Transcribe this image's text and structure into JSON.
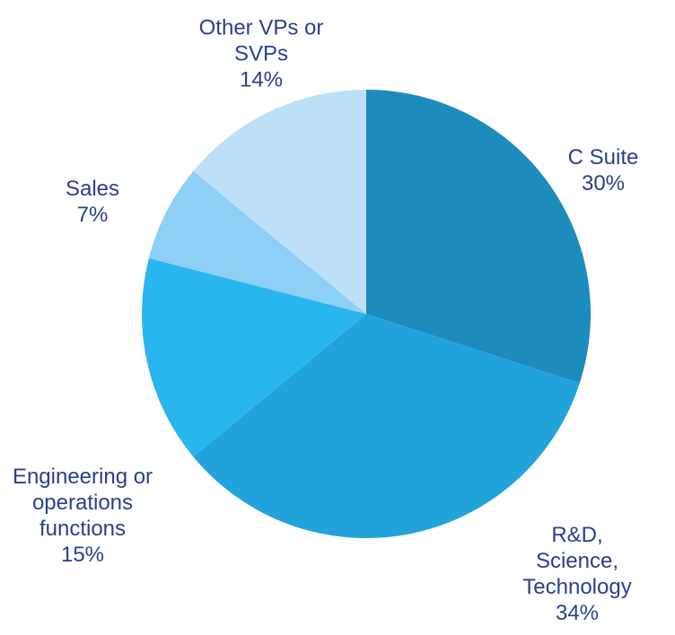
{
  "chart_data": {
    "type": "pie",
    "categories": [
      "C Suite",
      "R&D, Science, Technology",
      "Engineering or operations functions",
      "Sales",
      "Other VPs or SVPs"
    ],
    "values": [
      30,
      34,
      15,
      7,
      14
    ],
    "value_labels": [
      "30%",
      "34%",
      "15%",
      "7%",
      "14%"
    ],
    "colors": [
      "#1e8bbd",
      "#22a3dc",
      "#29b6ef",
      "#8ecff5",
      "#bde0f8"
    ]
  }
}
